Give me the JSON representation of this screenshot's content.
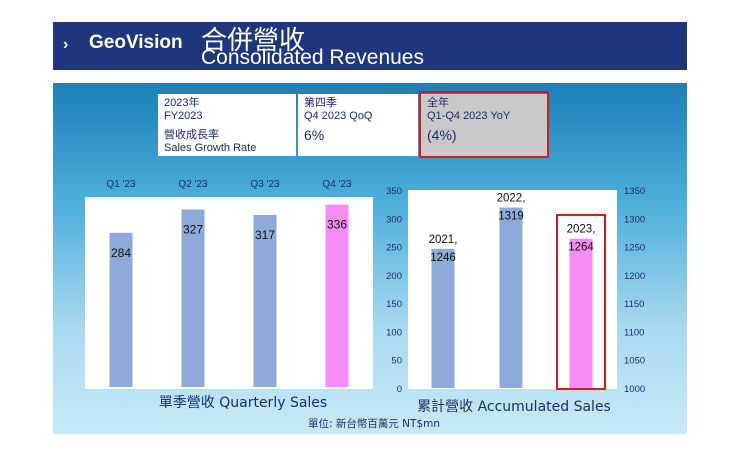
{
  "header": {
    "brand": "GeoVision",
    "chevron": "›",
    "title_zh": "合併營收",
    "title_en": "Consolidated Revenues"
  },
  "info_table": {
    "col1_line1": "2023年",
    "col1_line2": "FY2023",
    "col1_line3": "營收成長率",
    "col1_line4": "Sales Growth Rate",
    "col2_line1": "第四季",
    "col2_line2": "Q4 2023 QoQ",
    "col2_value": "6%",
    "col3_line1": "全年",
    "col3_line2": "Q1-Q4 2023 YoY",
    "col3_value": "(4%)"
  },
  "footer_note": "單位: 新台幣百萬元 NT$mn",
  "colors": {
    "bar": "#8fa9d8",
    "highlight": "#f48cf4",
    "highlight_box": "#d91a1a",
    "navy": "#21357e"
  },
  "chart_data": [
    {
      "type": "bar",
      "title": "單季營收 Quarterly Sales",
      "categories": [
        "Q1 '23",
        "Q2 '23",
        "Q3 '23",
        "Q4 '23"
      ],
      "values": [
        284,
        327,
        317,
        336
      ],
      "value_labels": [
        "284",
        "327",
        "317",
        "336"
      ],
      "highlight_index": 3,
      "ylim": [
        0,
        350
      ],
      "grid": false,
      "legend": "none"
    },
    {
      "type": "bar",
      "title": "累計營收 Accumulated Sales",
      "categories": [
        "2021",
        "2022",
        "2023"
      ],
      "values": [
        1246,
        1319,
        1264
      ],
      "value_labels": [
        [
          "2021,",
          "1246"
        ],
        [
          "2022,",
          "1319"
        ],
        [
          "2023,",
          "1264"
        ]
      ],
      "highlight_index": 2,
      "left_axis": {
        "ticks": [
          0,
          50,
          100,
          150,
          200,
          250,
          300,
          350
        ]
      },
      "right_axis": {
        "ticks": [
          1000,
          1050,
          1100,
          1150,
          1200,
          1250,
          1300,
          1350
        ]
      },
      "ylim": [
        1000,
        1350
      ],
      "grid": false,
      "legend": "none"
    }
  ]
}
